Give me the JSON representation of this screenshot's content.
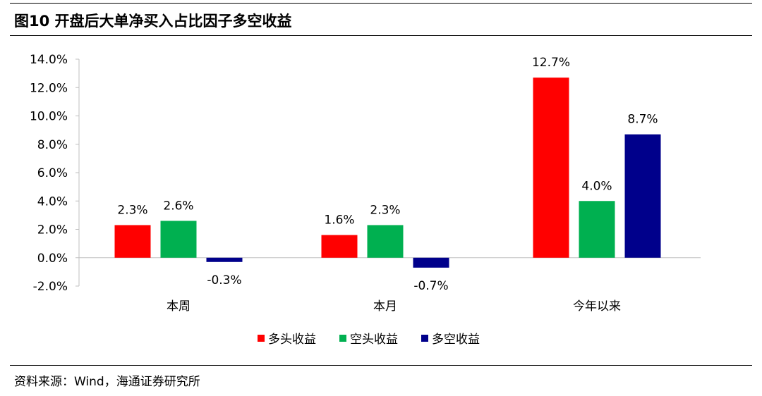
{
  "figure": {
    "title": "图10 开盘后大单净买入占比因子多空收益",
    "source": "资料来源：Wind，海通证券研究所"
  },
  "chart_data": {
    "type": "bar",
    "categories": [
      "本周",
      "本月",
      "今年以来"
    ],
    "series": [
      {
        "name": "多头收益",
        "color": "#ff0000",
        "values": [
          2.3,
          1.6,
          12.7
        ]
      },
      {
        "name": "空头收益",
        "color": "#00b050",
        "values": [
          2.6,
          2.3,
          4.0
        ]
      },
      {
        "name": "多空收益",
        "color": "#00008b",
        "values": [
          -0.3,
          -0.7,
          8.7
        ]
      }
    ],
    "data_labels": [
      [
        "2.3%",
        "2.6%",
        "-0.3%"
      ],
      [
        "1.6%",
        "2.3%",
        "-0.7%"
      ],
      [
        "12.7%",
        "4.0%",
        "8.7%"
      ]
    ],
    "ylim": [
      -2.0,
      14.0
    ],
    "yticks": [
      -2.0,
      0.0,
      2.0,
      4.0,
      6.0,
      8.0,
      10.0,
      12.0,
      14.0
    ],
    "ytick_labels": [
      "-2.0%",
      "0.0%",
      "2.0%",
      "4.0%",
      "6.0%",
      "8.0%",
      "10.0%",
      "12.0%",
      "14.0%"
    ],
    "grid": false,
    "legend_position": "bottom-center"
  }
}
